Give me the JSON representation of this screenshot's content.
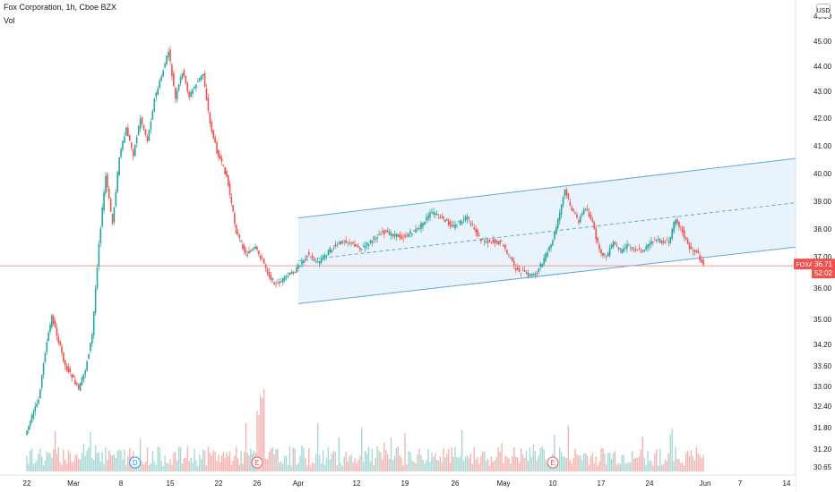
{
  "header": {
    "title": "Fox Corporation, 1h, Cboe BZX",
    "volume_label": "Vol",
    "currency": "USD"
  },
  "colors": {
    "up": "#26a69a",
    "down": "#ef5350",
    "vol_up": "#a8d8d3",
    "vol_down": "#f5b3b1",
    "channel_line": "#5fa7d9",
    "channel_fill": "#e9f3fb",
    "price_line": "#ef9a9a",
    "axis_text": "#131722"
  },
  "badge": {
    "symbol": "FOXA",
    "price": "36.71",
    "countdown": "52:02"
  },
  "chart_data": {
    "type": "candlestick",
    "title": "Fox Corporation, 1h, Cboe BZX",
    "y_axis": {
      "side": "right",
      "ticks": [
        "30.65",
        "31.20",
        "31.80",
        "32.40",
        "33.00",
        "33.60",
        "34.20",
        "35.00",
        "36.00",
        "37.00",
        "38.00",
        "39.00",
        "40.00",
        "41.00",
        "42.00",
        "43.00",
        "44.00",
        "45.00",
        "46.00"
      ]
    },
    "x_axis": {
      "ticks": [
        "22",
        "Mar",
        "8",
        "15",
        "22",
        "26",
        "Apr",
        "12",
        "19",
        "26",
        "May",
        "10",
        "17",
        "24",
        "Jun",
        "7",
        "14"
      ]
    },
    "last_price": 36.71,
    "markers": [
      {
        "label": "D",
        "date": "Mar 10"
      },
      {
        "label": "E",
        "date": "Mar 26"
      },
      {
        "label": "E",
        "date": "May 10"
      }
    ],
    "price_path": [
      {
        "t": "Feb 22",
        "close": 31.6
      },
      {
        "t": "Feb 24",
        "close": 32.6
      },
      {
        "t": "Feb 25",
        "close": 34.0
      },
      {
        "t": "Feb 26",
        "close": 35.1
      },
      {
        "t": "Feb 28",
        "close": 33.6
      },
      {
        "t": "Mar 1",
        "close": 33.3
      },
      {
        "t": "Mar 2",
        "close": 32.9
      },
      {
        "t": "Mar 3",
        "close": 33.5
      },
      {
        "t": "Mar 4",
        "close": 34.5
      },
      {
        "t": "Mar 5",
        "close": 37.5
      },
      {
        "t": "Mar 6",
        "close": 39.9
      },
      {
        "t": "Mar 7",
        "close": 38.2
      },
      {
        "t": "Mar 8",
        "close": 40.6
      },
      {
        "t": "Mar 9",
        "close": 41.6
      },
      {
        "t": "Mar 10",
        "close": 40.7
      },
      {
        "t": "Mar 11",
        "close": 42.0
      },
      {
        "t": "Mar 12",
        "close": 41.2
      },
      {
        "t": "Mar 13",
        "close": 42.7
      },
      {
        "t": "Mar 14",
        "close": 43.6
      },
      {
        "t": "Mar 15",
        "close": 44.6
      },
      {
        "t": "Mar 16",
        "close": 42.7
      },
      {
        "t": "Mar 17",
        "close": 43.8
      },
      {
        "t": "Mar 18",
        "close": 42.8
      },
      {
        "t": "Mar 19",
        "close": 43.3
      },
      {
        "t": "Mar 20",
        "close": 43.7
      },
      {
        "t": "Mar 21",
        "close": 41.8
      },
      {
        "t": "Mar 22",
        "close": 40.8
      },
      {
        "t": "Mar 23",
        "close": 39.9
      },
      {
        "t": "Mar 24",
        "close": 37.9
      },
      {
        "t": "Mar 25",
        "close": 37.1
      },
      {
        "t": "Mar 26",
        "close": 37.3
      },
      {
        "t": "Mar 27",
        "close": 36.9
      },
      {
        "t": "Mar 28",
        "close": 36.4
      },
      {
        "t": "Mar 29",
        "close": 36.1
      },
      {
        "t": "Apr 1",
        "close": 36.6
      },
      {
        "t": "Apr 3",
        "close": 37.1
      },
      {
        "t": "Apr 5",
        "close": 36.8
      },
      {
        "t": "Apr 7",
        "close": 37.2
      },
      {
        "t": "Apr 10",
        "close": 37.6
      },
      {
        "t": "Apr 13",
        "close": 37.3
      },
      {
        "t": "Apr 16",
        "close": 37.9
      },
      {
        "t": "Apr 19",
        "close": 37.7
      },
      {
        "t": "Apr 21",
        "close": 38.0
      },
      {
        "t": "Apr 23",
        "close": 38.6
      },
      {
        "t": "Apr 26",
        "close": 38.1
      },
      {
        "t": "Apr 28",
        "close": 38.4
      },
      {
        "t": "Apr 30",
        "close": 37.6
      },
      {
        "t": "May 3",
        "close": 37.5
      },
      {
        "t": "May 5",
        "close": 36.6
      },
      {
        "t": "May 7",
        "close": 36.4
      },
      {
        "t": "May 8",
        "close": 36.5
      },
      {
        "t": "May 10",
        "close": 37.4
      },
      {
        "t": "May 11",
        "close": 38.3
      },
      {
        "t": "May 12",
        "close": 39.4
      },
      {
        "t": "May 13",
        "close": 38.7
      },
      {
        "t": "May 14",
        "close": 38.3
      },
      {
        "t": "May 15",
        "close": 38.8
      },
      {
        "t": "May 16",
        "close": 38.2
      },
      {
        "t": "May 17",
        "close": 37.2
      },
      {
        "t": "May 18",
        "close": 37.0
      },
      {
        "t": "May 19",
        "close": 37.5
      },
      {
        "t": "May 20",
        "close": 37.2
      },
      {
        "t": "May 21",
        "close": 37.4
      },
      {
        "t": "May 23",
        "close": 37.2
      },
      {
        "t": "May 25",
        "close": 37.6
      },
      {
        "t": "May 27",
        "close": 37.5
      },
      {
        "t": "May 28",
        "close": 38.4
      },
      {
        "t": "May 29",
        "close": 37.9
      },
      {
        "t": "May 30",
        "close": 37.3
      },
      {
        "t": "May 31",
        "close": 37.2
      },
      {
        "t": "Jun 1",
        "close": 36.71
      }
    ],
    "channel": {
      "start": "Apr 1",
      "end": "Jun 17",
      "lower_start": 35.5,
      "upper_start": 38.4,
      "lower_end": 37.4,
      "upper_end": 40.6
    }
  }
}
